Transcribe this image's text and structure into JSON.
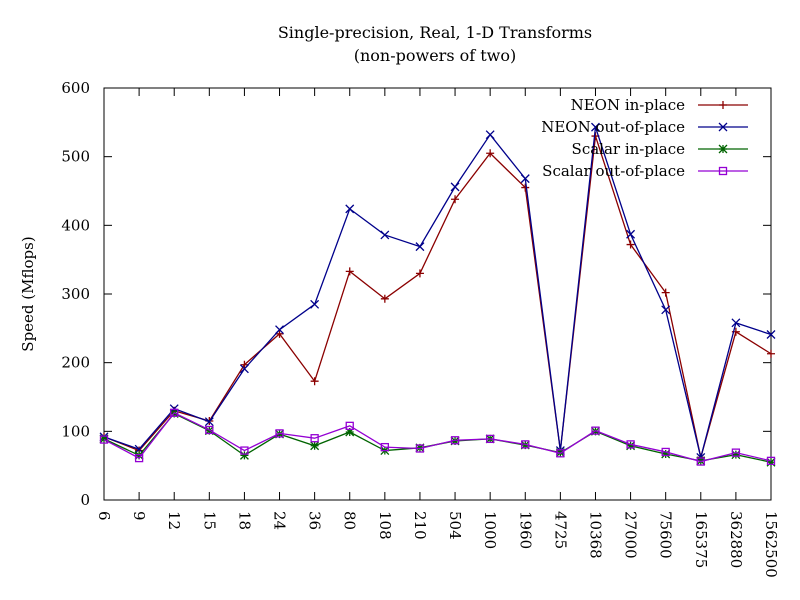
{
  "chart_data": {
    "type": "line",
    "title": "Single-precision, Real, 1-D Transforms",
    "subtitle": "(non-powers of two)",
    "xlabel": "",
    "ylabel": "Speed (Mflops)",
    "ylim": [
      0,
      600
    ],
    "yticks": [
      0,
      100,
      200,
      300,
      400,
      500,
      600
    ],
    "categories": [
      "6",
      "9",
      "12",
      "15",
      "18",
      "24",
      "36",
      "80",
      "108",
      "210",
      "504",
      "1000",
      "1960",
      "4725",
      "10368",
      "27000",
      "75600",
      "165375",
      "362880",
      "1562500"
    ],
    "legend_position": "top-right",
    "grid": false,
    "series": [
      {
        "name": "NEON in-place",
        "color": "#8b0000",
        "marker": "plus",
        "values": [
          92,
          72,
          130,
          115,
          197,
          242,
          173,
          333,
          293,
          330,
          438,
          505,
          455,
          72,
          530,
          372,
          302,
          62,
          245,
          213
        ]
      },
      {
        "name": "NEON out-of-place",
        "color": "#00008b",
        "marker": "cross",
        "values": [
          92,
          74,
          133,
          114,
          191,
          248,
          285,
          424,
          386,
          369,
          456,
          532,
          468,
          72,
          543,
          387,
          277,
          62,
          258,
          241
        ]
      },
      {
        "name": "Scalar in-place",
        "color": "#006400",
        "marker": "star",
        "values": [
          89,
          65,
          126,
          101,
          65,
          96,
          79,
          99,
          72,
          76,
          86,
          89,
          80,
          69,
          100,
          79,
          67,
          57,
          66,
          55
        ]
      },
      {
        "name": "Scalar out-of-place",
        "color": "#9400d3",
        "marker": "square",
        "values": [
          88,
          61,
          127,
          102,
          72,
          97,
          90,
          108,
          77,
          75,
          87,
          89,
          81,
          68,
          101,
          81,
          70,
          56,
          69,
          57
        ]
      }
    ]
  }
}
